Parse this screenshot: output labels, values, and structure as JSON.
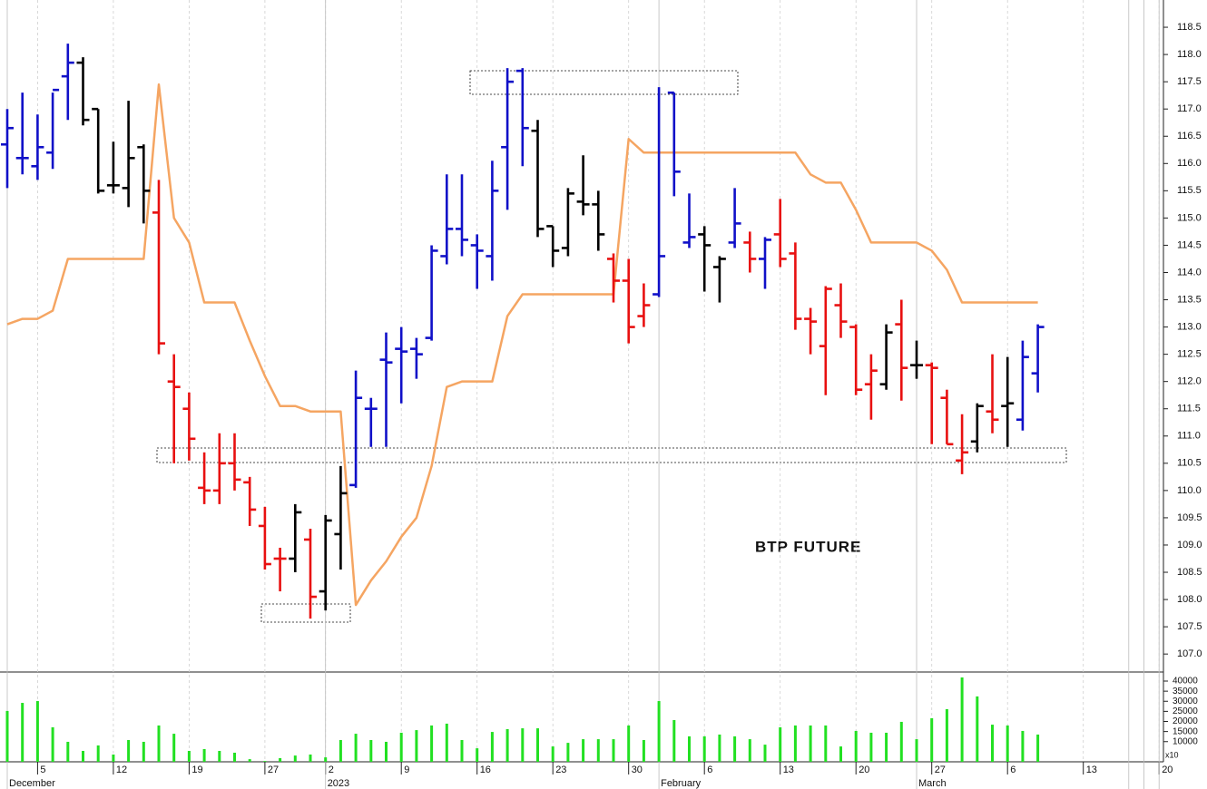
{
  "chart_data": {
    "type": "ohlc",
    "annotation": "BTP FUTURE",
    "categories": [
      null,
      null,
      "5",
      null,
      null,
      null,
      null,
      "12",
      null,
      null,
      null,
      null,
      "19",
      null,
      null,
      null,
      null,
      "27",
      null,
      null,
      null,
      "2",
      null,
      null,
      null,
      null,
      "9",
      null,
      null,
      null,
      null,
      "16",
      null,
      null,
      null,
      null,
      "23",
      null,
      null,
      null,
      null,
      "30",
      null,
      null,
      null,
      null,
      "6",
      null,
      null,
      null,
      null,
      "13",
      null,
      null,
      null,
      null,
      "20",
      null,
      null,
      null,
      null,
      "27",
      null,
      null,
      null,
      null,
      "6",
      null,
      null,
      null,
      null,
      "13",
      null,
      null,
      null,
      null,
      "20"
    ],
    "month_categories": [
      "December",
      null,
      null,
      null,
      null,
      null,
      null,
      null,
      null,
      null,
      null,
      null,
      null,
      null,
      null,
      null,
      null,
      null,
      null,
      null,
      null,
      "2023",
      null,
      null,
      null,
      null,
      null,
      null,
      null,
      null,
      null,
      null,
      null,
      null,
      null,
      null,
      null,
      null,
      null,
      null,
      null,
      null,
      null,
      "February",
      null,
      null,
      null,
      null,
      null,
      null,
      null,
      null,
      null,
      null,
      null,
      null,
      null,
      null,
      null,
      null,
      "March",
      null,
      null,
      null,
      null,
      null,
      null,
      null,
      null,
      null,
      null,
      null,
      null,
      null
    ],
    "open": [
      116.35,
      116.1,
      115.95,
      116.2,
      117.6,
      117.85,
      117.0,
      115.6,
      115.55,
      116.3,
      115.1,
      112.0,
      111.5,
      110.05,
      110.0,
      110.5,
      110.15,
      109.35,
      108.75,
      108.75,
      109.1,
      108.15,
      109.2,
      110.1,
      111.5,
      112.4,
      112.6,
      112.6,
      112.8,
      114.3,
      114.8,
      114.5,
      114.3,
      116.3,
      117.7,
      116.6,
      114.85,
      114.45,
      115.3,
      115.25,
      114.25,
      113.85,
      113.2,
      113.6,
      117.3,
      114.55,
      114.7,
      114.1,
      114.55,
      114.55,
      114.25,
      114.7,
      114.35,
      113.15,
      112.65,
      113.4,
      113.0,
      111.95,
      111.95,
      113.05,
      112.3,
      112.3,
      111.7,
      110.55,
      110.9,
      111.45,
      111.55,
      111.3,
      112.15,
      null,
      null,
      null,
      null,
      null,
      null,
      null,
      null
    ],
    "high": [
      117.0,
      117.3,
      116.9,
      117.3,
      118.2,
      117.95,
      117.0,
      116.4,
      117.15,
      116.35,
      115.7,
      112.5,
      111.8,
      110.7,
      111.05,
      111.05,
      110.25,
      109.7,
      108.95,
      109.75,
      109.3,
      109.55,
      110.45,
      112.2,
      111.7,
      112.9,
      113.0,
      112.8,
      114.5,
      115.8,
      115.8,
      114.7,
      116.05,
      117.75,
      117.75,
      116.8,
      114.85,
      115.55,
      116.15,
      115.5,
      114.35,
      114.25,
      113.8,
      117.4,
      117.3,
      115.45,
      114.85,
      114.3,
      115.55,
      114.75,
      114.65,
      115.35,
      114.55,
      113.35,
      113.75,
      113.8,
      113.05,
      112.5,
      113.05,
      113.5,
      112.75,
      112.35,
      111.85,
      111.4,
      111.6,
      112.5,
      112.45,
      112.75,
      113.05,
      null,
      null,
      null,
      null,
      null,
      null,
      null,
      null
    ],
    "low": [
      115.55,
      115.8,
      115.7,
      115.9,
      116.8,
      116.7,
      115.45,
      115.45,
      115.2,
      114.9,
      112.5,
      110.5,
      110.55,
      109.75,
      109.75,
      110.0,
      109.35,
      108.55,
      108.15,
      108.5,
      107.65,
      107.8,
      108.55,
      110.05,
      110.8,
      110.8,
      111.6,
      112.05,
      112.75,
      114.15,
      114.3,
      113.7,
      113.85,
      115.15,
      115.95,
      114.65,
      114.1,
      114.3,
      115.05,
      114.4,
      113.45,
      112.7,
      113.0,
      113.55,
      115.4,
      114.45,
      113.65,
      113.45,
      114.45,
      114.0,
      113.7,
      114.1,
      112.95,
      112.5,
      111.75,
      112.8,
      111.75,
      111.3,
      111.85,
      111.65,
      112.05,
      110.85,
      110.85,
      110.3,
      110.7,
      111.05,
      110.8,
      111.1,
      111.8,
      null,
      null,
      null,
      null,
      null,
      null,
      null,
      null
    ],
    "close": [
      116.65,
      116.1,
      116.3,
      117.35,
      117.85,
      116.8,
      115.5,
      115.6,
      116.1,
      115.5,
      112.7,
      111.9,
      110.95,
      110.0,
      110.5,
      110.2,
      109.65,
      108.65,
      108.75,
      109.6,
      108.05,
      109.45,
      109.95,
      111.7,
      111.5,
      112.35,
      112.55,
      112.5,
      114.4,
      114.8,
      114.6,
      114.4,
      115.5,
      117.5,
      116.65,
      114.8,
      114.4,
      115.45,
      115.25,
      114.7,
      113.85,
      113.0,
      113.4,
      114.3,
      115.85,
      114.65,
      114.5,
      114.25,
      114.9,
      114.25,
      114.6,
      114.25,
      113.15,
      113.1,
      113.7,
      113.1,
      111.85,
      112.2,
      112.9,
      112.25,
      112.3,
      112.25,
      110.85,
      110.7,
      111.55,
      111.3,
      111.6,
      112.45,
      113.0,
      null,
      null,
      null,
      null,
      null,
      null,
      null,
      null
    ],
    "bar_colors": [
      "#1010c8",
      "#1010c8",
      "#1010c8",
      "#1010c8",
      "#1010c8",
      "#000000",
      "#000000",
      "#000000",
      "#000000",
      "#000000",
      "#e81010",
      "#e81010",
      "#e81010",
      "#e81010",
      "#e81010",
      "#e81010",
      "#e81010",
      "#e81010",
      "#e81010",
      "#000000",
      "#e81010",
      "#000000",
      "#000000",
      "#1010c8",
      "#1010c8",
      "#1010c8",
      "#1010c8",
      "#1010c8",
      "#1010c8",
      "#1010c8",
      "#1010c8",
      "#1010c8",
      "#1010c8",
      "#1010c8",
      "#1010c8",
      "#000000",
      "#000000",
      "#000000",
      "#000000",
      "#000000",
      "#e81010",
      "#e81010",
      "#e81010",
      "#1010c8",
      "#1010c8",
      "#1010c8",
      "#000000",
      "#000000",
      "#1010c8",
      "#e81010",
      "#1010c8",
      "#e81010",
      "#e81010",
      "#e81010",
      "#e81010",
      "#e81010",
      "#e81010",
      "#e81010",
      "#000000",
      "#e81010",
      "#000000",
      "#e81010",
      "#e81010",
      "#e81010",
      "#000000",
      "#e81010",
      "#000000",
      "#1010c8",
      "#1010c8",
      null,
      null,
      null,
      null,
      null,
      null,
      null,
      null
    ],
    "line": {
      "color": "#f5a562",
      "values": [
        113.05,
        113.15,
        113.15,
        113.3,
        114.25,
        114.25,
        114.25,
        114.25,
        114.25,
        114.25,
        117.45,
        115.0,
        114.55,
        113.45,
        113.45,
        113.45,
        112.75,
        112.1,
        111.55,
        111.55,
        111.45,
        111.45,
        111.45,
        107.9,
        108.35,
        108.7,
        109.15,
        109.5,
        110.45,
        111.9,
        112.0,
        112.0,
        112.0,
        113.2,
        113.6,
        113.6,
        113.6,
        113.6,
        113.6,
        113.6,
        113.6,
        116.45,
        116.2,
        116.2,
        116.2,
        116.2,
        116.2,
        116.2,
        116.2,
        116.2,
        116.2,
        116.2,
        116.2,
        115.8,
        115.65,
        115.65,
        115.15,
        114.55,
        114.55,
        114.55,
        114.55,
        114.4,
        114.05,
        113.45,
        113.45,
        113.45,
        113.45,
        113.45,
        113.45,
        null,
        null,
        null,
        null,
        null,
        null,
        null,
        null
      ]
    },
    "ylim": [
      106.67,
      119.0
    ],
    "yticks": [
      {
        "value": 107,
        "label": "107.0"
      },
      107.5,
      {
        "value": 108,
        "label": "108.0"
      },
      108.5,
      {
        "value": 109,
        "label": "109.0"
      },
      109.5,
      {
        "value": 110,
        "label": "110.0"
      },
      110.5,
      {
        "value": 111,
        "label": "111.0"
      },
      111.5,
      {
        "value": 112,
        "label": "112.0"
      },
      112.5,
      {
        "value": 113,
        "label": "113.0"
      },
      113.5,
      {
        "value": 114,
        "label": "114.0"
      },
      114.5,
      {
        "value": 115,
        "label": "115.0"
      },
      115.5,
      {
        "value": 116,
        "label": "116.0"
      },
      116.5,
      {
        "value": 117,
        "label": "117.0"
      },
      117.5,
      {
        "value": 118,
        "label": "118.0"
      },
      118.5
    ],
    "volume": {
      "color": "#22e022",
      "unit": "x10",
      "values": [
        25200,
        29200,
        30100,
        17100,
        9900,
        5400,
        8100,
        3600,
        10800,
        9900,
        18000,
        13900,
        5400,
        6300,
        5400,
        4500,
        1300,
        400,
        1800,
        3100,
        3600,
        2200,
        10800,
        13900,
        10800,
        9900,
        14400,
        15700,
        18000,
        18900,
        10800,
        6700,
        14800,
        16200,
        16600,
        16600,
        7600,
        9400,
        11200,
        11200,
        11200,
        18000,
        10800,
        30100,
        20700,
        12600,
        12600,
        13500,
        12600,
        11200,
        8500,
        17100,
        18000,
        18000,
        18000,
        7600,
        15300,
        14400,
        14400,
        19800,
        11200,
        21600,
        26100,
        41800,
        32400,
        18400,
        18000,
        15300,
        13500,
        null,
        null,
        null,
        null,
        null,
        null,
        null,
        null
      ],
      "ylim": [
        0,
        44500
      ],
      "yticks": [
        10000,
        15000,
        20000,
        25000,
        30000,
        35000,
        40000
      ]
    },
    "grid": true
  }
}
